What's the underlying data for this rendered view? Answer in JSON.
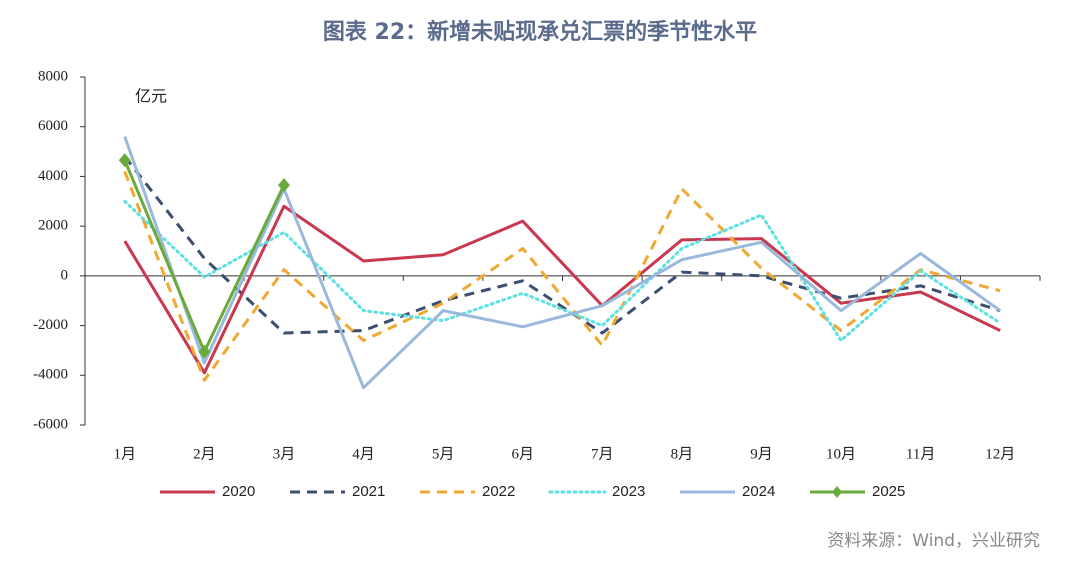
{
  "chart_data": {
    "type": "line",
    "title": "图表 22：新增未贴现承兑汇票的季节性水平",
    "unit_label": "亿元",
    "source": "资料来源：Wind，兴业研究",
    "categories": [
      "1月",
      "2月",
      "3月",
      "4月",
      "5月",
      "6月",
      "7月",
      "8月",
      "9月",
      "10月",
      "11月",
      "12月"
    ],
    "ylim": [
      -6000,
      8000
    ],
    "yticks": [
      -6000,
      -4000,
      -2000,
      0,
      2000,
      4000,
      6000,
      8000
    ],
    "grid": false,
    "legend": "bottom",
    "series": [
      {
        "name": "2020",
        "color": "#c8384f",
        "dash": "solid",
        "values": [
          1400,
          -3900,
          2800,
          600,
          850,
          2200,
          -1200,
          1450,
          1500,
          -1100,
          -650,
          -2200
        ]
      },
      {
        "name": "2021",
        "color": "#3d4f6e",
        "dash": "dashed",
        "values": [
          4800,
          700,
          -2300,
          -2200,
          -1000,
          -200,
          -2300,
          150,
          0,
          -900,
          -400,
          -1400
        ]
      },
      {
        "name": "2022",
        "color": "#f0a830",
        "dash": "dashed",
        "values": [
          4200,
          -4200,
          250,
          -2600,
          -1100,
          1100,
          -2800,
          3500,
          300,
          -2200,
          250,
          -600
        ]
      },
      {
        "name": "2023",
        "color": "#5ee0e0",
        "dash": "dotted",
        "values": [
          3000,
          -50,
          1750,
          -1400,
          -1800,
          -700,
          -2000,
          1100,
          2450,
          -2600,
          200,
          -1900
        ]
      },
      {
        "name": "2024",
        "color": "#9ab8dc",
        "dash": "solid",
        "values": [
          5600,
          -3500,
          3500,
          -4500,
          -1400,
          -2050,
          -1200,
          650,
          1350,
          -1400,
          900,
          -1400
        ]
      },
      {
        "name": "2025",
        "color": "#6aaa3a",
        "dash": "solid",
        "marker": "diamond",
        "values": [
          4650,
          -3050,
          3650,
          null,
          null,
          null,
          null,
          null,
          null,
          null,
          null,
          null
        ]
      }
    ]
  }
}
